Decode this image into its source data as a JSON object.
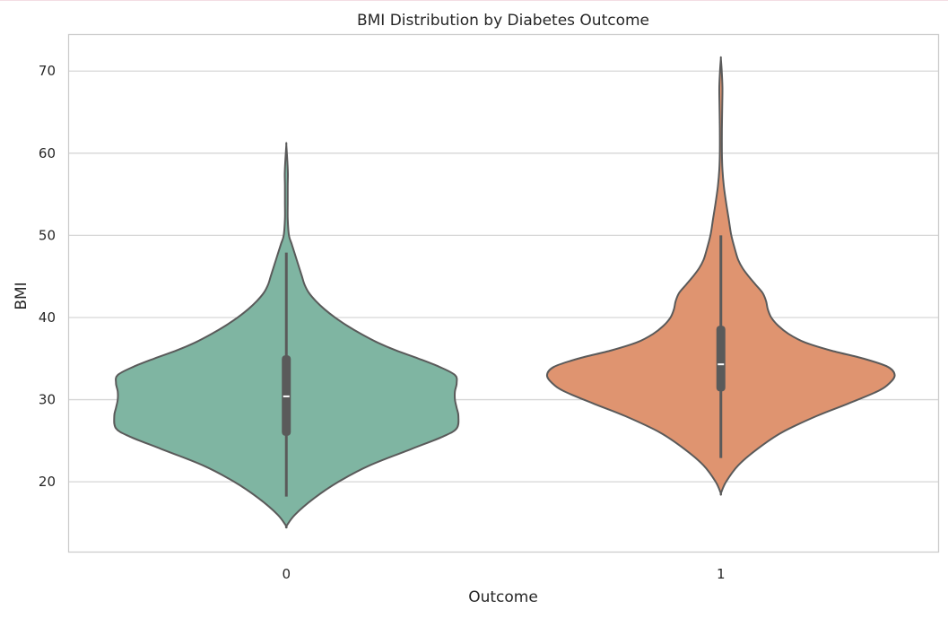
{
  "chart_data": {
    "type": "violin",
    "title": "BMI Distribution by Diabetes Outcome",
    "xlabel": "Outcome",
    "ylabel": "BMI",
    "categories": [
      "0",
      "1"
    ],
    "ylim": [
      11.5,
      74.5
    ],
    "yticks": [
      20,
      30,
      40,
      50,
      60,
      70
    ],
    "grid": "horizontal",
    "violins": [
      {
        "category": "0",
        "color": "#7fb5a2",
        "median": 30.4,
        "q1": 25.6,
        "q3": 35.4,
        "whisker_low": 18.2,
        "whisker_high": 47.9,
        "density": [
          [
            14.6,
            0.0
          ],
          [
            16.0,
            0.05
          ],
          [
            18.0,
            0.16
          ],
          [
            20.0,
            0.3
          ],
          [
            22.0,
            0.48
          ],
          [
            24.0,
            0.72
          ],
          [
            25.5,
            0.9
          ],
          [
            26.5,
            0.98
          ],
          [
            28.0,
            0.99
          ],
          [
            29.0,
            0.98
          ],
          [
            30.0,
            0.97
          ],
          [
            31.0,
            0.97
          ],
          [
            32.0,
            0.98
          ],
          [
            33.0,
            0.97
          ],
          [
            34.0,
            0.88
          ],
          [
            35.0,
            0.76
          ],
          [
            36.0,
            0.63
          ],
          [
            37.0,
            0.52
          ],
          [
            38.0,
            0.43
          ],
          [
            39.0,
            0.35
          ],
          [
            40.0,
            0.28
          ],
          [
            41.0,
            0.22
          ],
          [
            42.0,
            0.17
          ],
          [
            43.0,
            0.13
          ],
          [
            44.0,
            0.105
          ],
          [
            45.0,
            0.09
          ],
          [
            46.0,
            0.075
          ],
          [
            47.0,
            0.06
          ],
          [
            48.0,
            0.045
          ],
          [
            49.0,
            0.03
          ],
          [
            50.0,
            0.015
          ],
          [
            52.0,
            0.008
          ],
          [
            54.0,
            0.008
          ],
          [
            56.0,
            0.008
          ],
          [
            57.5,
            0.009
          ],
          [
            59.0,
            0.006
          ],
          [
            61.0,
            0.0
          ]
        ]
      },
      {
        "category": "1",
        "color": "#df9470",
        "median": 34.3,
        "q1": 31.0,
        "q3": 39.0,
        "whisker_low": 22.9,
        "whisker_high": 50.0,
        "density": [
          [
            18.6,
            0.0
          ],
          [
            20.0,
            0.03
          ],
          [
            22.0,
            0.1
          ],
          [
            24.0,
            0.21
          ],
          [
            26.0,
            0.35
          ],
          [
            28.0,
            0.55
          ],
          [
            29.5,
            0.73
          ],
          [
            31.0,
            0.9
          ],
          [
            32.0,
            0.97
          ],
          [
            33.0,
            1.0
          ],
          [
            34.0,
            0.96
          ],
          [
            35.0,
            0.82
          ],
          [
            36.0,
            0.63
          ],
          [
            37.0,
            0.48
          ],
          [
            38.0,
            0.39
          ],
          [
            39.0,
            0.33
          ],
          [
            40.0,
            0.29
          ],
          [
            41.0,
            0.27
          ],
          [
            42.0,
            0.26
          ],
          [
            43.0,
            0.24
          ],
          [
            44.0,
            0.2
          ],
          [
            45.0,
            0.16
          ],
          [
            46.0,
            0.125
          ],
          [
            47.0,
            0.1
          ],
          [
            48.0,
            0.085
          ],
          [
            50.0,
            0.06
          ],
          [
            52.0,
            0.045
          ],
          [
            54.0,
            0.03
          ],
          [
            56.0,
            0.017
          ],
          [
            58.0,
            0.009
          ],
          [
            60.0,
            0.006
          ],
          [
            63.0,
            0.006
          ],
          [
            66.0,
            0.008
          ],
          [
            68.0,
            0.009
          ],
          [
            70.0,
            0.005
          ],
          [
            71.5,
            0.0
          ]
        ]
      }
    ]
  }
}
